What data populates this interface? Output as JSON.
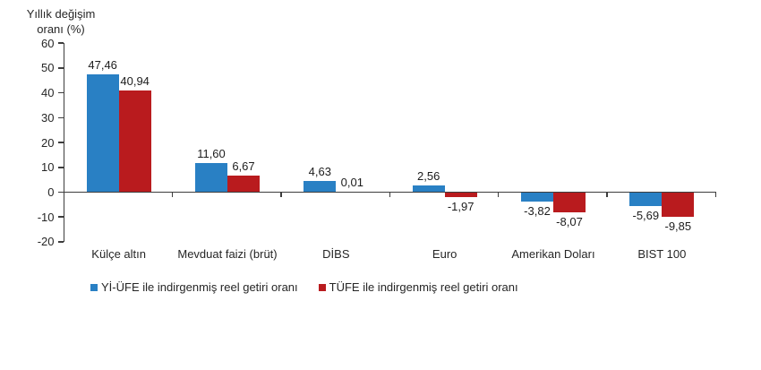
{
  "chart_data": {
    "type": "bar",
    "title": "",
    "y_axis_title_lines": [
      "Yıllık değişim",
      "oranı (%)"
    ],
    "categories": [
      "Külçe altın",
      "Mevduat faizi (brüt)",
      "DİBS",
      "Euro",
      "Amerikan Doları",
      "BIST 100"
    ],
    "series": [
      {
        "name": "Yİ-ÜFE ile indirgenmiş reel getiri oranı",
        "color": "#2980c4",
        "values": [
          47.46,
          11.6,
          4.63,
          2.56,
          -3.82,
          -5.69
        ],
        "labels": [
          "47,46",
          "11,60",
          "4,63",
          "2,56",
          "-3,82",
          "-5,69"
        ]
      },
      {
        "name": "TÜFE ile indirgenmiş reel getiri oranı",
        "color": "#b91b1e",
        "values": [
          40.94,
          6.67,
          0.01,
          -1.97,
          -8.07,
          -9.85
        ],
        "labels": [
          "40,94",
          "6,67",
          "0,01",
          "-1,97",
          "-8,07",
          "-9,85"
        ]
      }
    ],
    "ylim": [
      -20,
      60
    ],
    "yticks": [
      60,
      50,
      40,
      30,
      20,
      10,
      0,
      -10,
      -20
    ],
    "ytick_labels": [
      "60",
      "50",
      "40",
      "30",
      "20",
      "10",
      "0",
      "-10",
      "-20"
    ],
    "grid": false,
    "legend_position": "bottom",
    "colors": {
      "axis": "#3d3d3d",
      "text": "#262626"
    }
  }
}
